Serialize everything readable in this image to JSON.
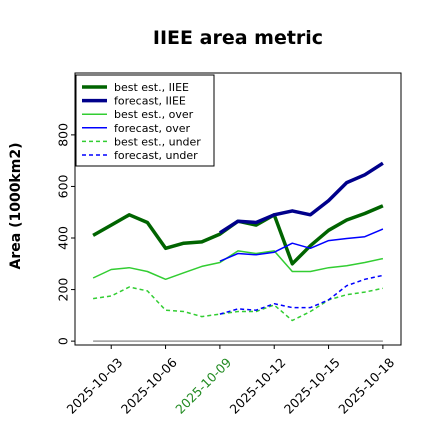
{
  "chart_data": {
    "type": "line",
    "title": "IIEE area metric",
    "xlabel": "",
    "ylabel": "Area (1000km2)",
    "x_ticks": [
      "2025-10-03",
      "2025-10-06",
      "2025-10-09",
      "2025-10-12",
      "2025-10-15",
      "2025-10-18"
    ],
    "highlight_tick": "2025-10-09",
    "highlight_color": "#228b22",
    "y_ticks": [
      0,
      200,
      400,
      600,
      800
    ],
    "ylim": [
      -15,
      1040
    ],
    "xlim": [
      "2025-10-01",
      "2025-10-19"
    ],
    "grid": false,
    "legend_position": "top-left",
    "series": [
      {
        "name": "best est., IIEE",
        "color": "#006400",
        "style": "solid",
        "weight": "thick",
        "x": [
          "2025-10-02",
          "2025-10-03",
          "2025-10-04",
          "2025-10-05",
          "2025-10-06",
          "2025-10-07",
          "2025-10-08",
          "2025-10-09",
          "2025-10-10",
          "2025-10-11",
          "2025-10-12",
          "2025-10-13",
          "2025-10-14",
          "2025-10-15",
          "2025-10-16",
          "2025-10-17",
          "2025-10-18"
        ],
        "values": [
          410,
          450,
          490,
          460,
          360,
          380,
          385,
          415,
          465,
          450,
          490,
          300,
          370,
          430,
          470,
          495,
          525
        ]
      },
      {
        "name": "forecast, IIEE",
        "color": "#00008b",
        "style": "solid",
        "weight": "thick",
        "x": [
          "2025-10-09",
          "2025-10-10",
          "2025-10-11",
          "2025-10-12",
          "2025-10-13",
          "2025-10-14",
          "2025-10-15",
          "2025-10-16",
          "2025-10-17",
          "2025-10-18"
        ],
        "values": [
          420,
          465,
          460,
          490,
          505,
          490,
          545,
          615,
          645,
          690
        ]
      },
      {
        "name": "best est., over",
        "color": "#32cd32",
        "style": "solid",
        "weight": "thin",
        "x": [
          "2025-10-02",
          "2025-10-03",
          "2025-10-04",
          "2025-10-05",
          "2025-10-06",
          "2025-10-07",
          "2025-10-08",
          "2025-10-09",
          "2025-10-10",
          "2025-10-11",
          "2025-10-12",
          "2025-10-13",
          "2025-10-14",
          "2025-10-15",
          "2025-10-16",
          "2025-10-17",
          "2025-10-18"
        ],
        "values": [
          245,
          278,
          285,
          270,
          240,
          265,
          290,
          305,
          350,
          340,
          350,
          270,
          270,
          285,
          292,
          305,
          320
        ]
      },
      {
        "name": "forecast, over",
        "color": "#0000ff",
        "style": "solid",
        "weight": "thin",
        "x": [
          "2025-10-09",
          "2025-10-10",
          "2025-10-11",
          "2025-10-12",
          "2025-10-13",
          "2025-10-14",
          "2025-10-15",
          "2025-10-16",
          "2025-10-17",
          "2025-10-18"
        ],
        "values": [
          310,
          340,
          335,
          345,
          380,
          360,
          390,
          398,
          405,
          435
        ]
      },
      {
        "name": "best est., under",
        "color": "#32cd32",
        "style": "dashed",
        "weight": "thin",
        "x": [
          "2025-10-02",
          "2025-10-03",
          "2025-10-04",
          "2025-10-05",
          "2025-10-06",
          "2025-10-07",
          "2025-10-08",
          "2025-10-09",
          "2025-10-10",
          "2025-10-11",
          "2025-10-12",
          "2025-10-13",
          "2025-10-14",
          "2025-10-15",
          "2025-10-16",
          "2025-10-17",
          "2025-10-18"
        ],
        "values": [
          165,
          175,
          210,
          195,
          120,
          115,
          95,
          105,
          115,
          115,
          140,
          80,
          115,
          160,
          180,
          190,
          205
        ]
      },
      {
        "name": "forecast, under",
        "color": "#0000ff",
        "style": "dashed",
        "weight": "thin",
        "x": [
          "2025-10-09",
          "2025-10-10",
          "2025-10-11",
          "2025-10-12",
          "2025-10-13",
          "2025-10-14",
          "2025-10-15",
          "2025-10-16",
          "2025-10-17",
          "2025-10-18"
        ],
        "values": [
          105,
          125,
          120,
          145,
          130,
          130,
          160,
          215,
          240,
          255
        ]
      },
      {
        "name": "",
        "color": "#999999",
        "style": "solid",
        "weight": "thin",
        "x": [
          "2025-10-02",
          "2025-10-18"
        ],
        "values": [
          0,
          0
        ]
      }
    ]
  }
}
